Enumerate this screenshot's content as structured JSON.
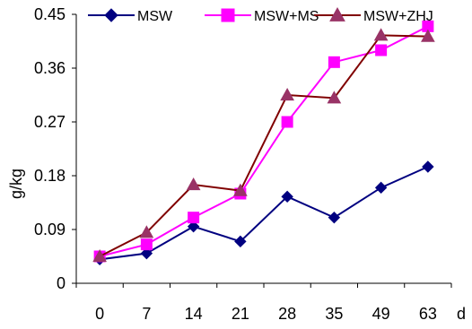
{
  "chart_data": {
    "type": "line",
    "categories": [
      "0",
      "7",
      "14",
      "21",
      "28",
      "35",
      "49",
      "63"
    ],
    "series": [
      {
        "name": "MSW",
        "values": [
          0.04,
          0.05,
          0.095,
          0.07,
          0.145,
          0.11,
          0.16,
          0.195
        ],
        "color": "#000080",
        "marker": "diamond"
      },
      {
        "name": "MSW+MS",
        "values": [
          0.045,
          0.065,
          0.11,
          0.15,
          0.27,
          0.37,
          0.39,
          0.43
        ],
        "color": "#FF00FF",
        "marker": "square"
      },
      {
        "name": "MSW+ZHJ",
        "values": [
          0.045,
          0.085,
          0.165,
          0.155,
          0.315,
          0.31,
          0.415,
          0.413
        ],
        "color": "#800000",
        "marker": "triangle",
        "marker_color": "#993366"
      }
    ],
    "yticks": [
      "0",
      "0.09",
      "0.18",
      "0.27",
      "0.36",
      "0.45"
    ],
    "ylim": [
      0,
      0.45
    ],
    "ylabel": "g/kg",
    "xlabel": "d",
    "legend_position": "top",
    "grid": false
  }
}
